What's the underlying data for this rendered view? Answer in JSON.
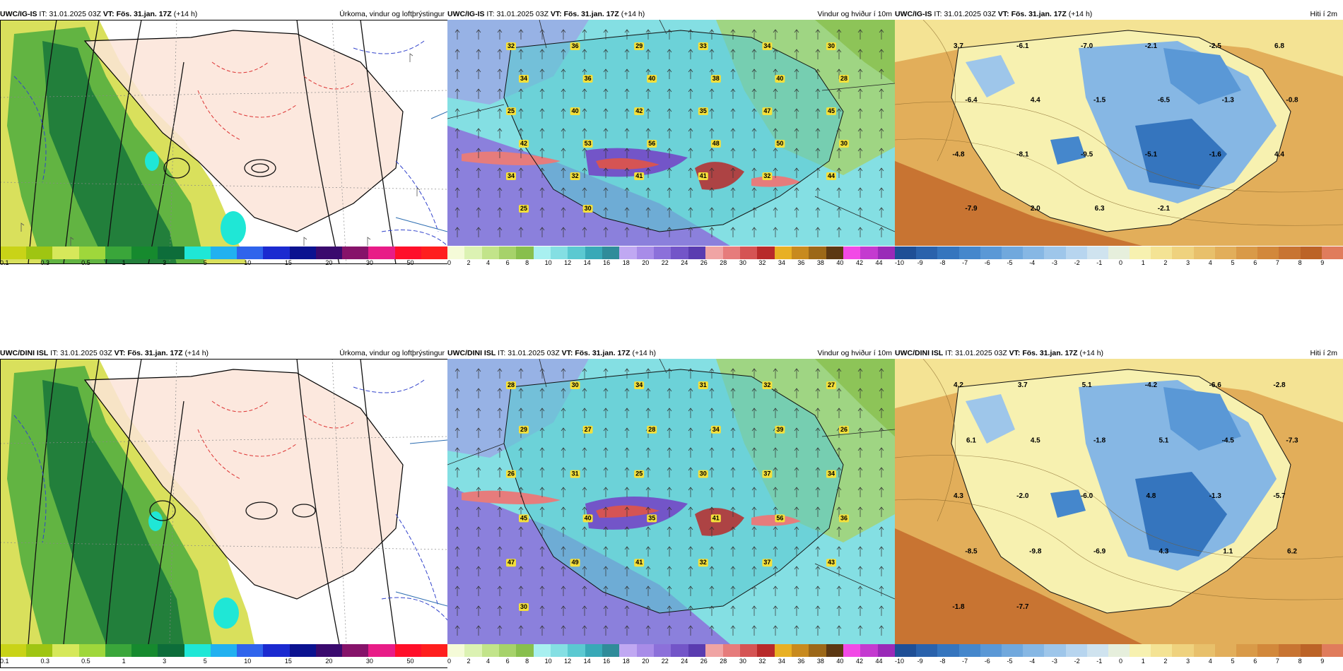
{
  "top_row": {
    "model": "UWC/IG-IS",
    "it_label": "IT:",
    "it_value": "31.01.2025 03Z",
    "vt_label": "VT:",
    "vt_value": "Fös. 31.jan. 17Z",
    "lead": "(+14 h)",
    "panels": [
      {
        "title": "Úrkoma, vindur og loftþrýstingur"
      },
      {
        "title": "Vindur og hviður í 10m"
      },
      {
        "title": "Hiti í 2m"
      }
    ],
    "temp_labels": [
      "3.7",
      "-6.1",
      "-7.0",
      "-2.1",
      "-2.5",
      "6.8",
      "-6.4",
      "4.4",
      "-1.5",
      "-6.5",
      "-1.3",
      "-0.8",
      "-4.8",
      "-8.1",
      "-9.5",
      "-5.1",
      "-1.6",
      "4.4",
      "-7.9",
      "2.0",
      "6.3",
      "-2.1"
    ],
    "wind_labels": [
      "32",
      "36",
      "29",
      "33",
      "34",
      "30",
      "34",
      "36",
      "40",
      "38",
      "40",
      "28",
      "25",
      "40",
      "42",
      "35",
      "47",
      "45",
      "42",
      "53",
      "56",
      "48",
      "50",
      "30",
      "34",
      "32",
      "41",
      "41",
      "32",
      "44",
      "25",
      "30"
    ]
  },
  "bottom_row": {
    "model": "UWC/DINI ISL",
    "it_label": "IT:",
    "it_value": "31.01.2025 03Z",
    "vt_label": "VT:",
    "vt_value": "Fös. 31.jan. 17Z",
    "lead": "(+14 h)",
    "panels": [
      {
        "title": "Úrkoma, vindur og loftþrýstingur"
      },
      {
        "title": "Vindur og hviður í 10m"
      },
      {
        "title": "Hiti í 2m"
      }
    ],
    "temp_labels": [
      "4.2",
      "3.7",
      "5.1",
      "-4.2",
      "-6.6",
      "-2.8",
      "6.1",
      "4.5",
      "-1.8",
      "5.1",
      "-4.5",
      "-7.3",
      "4.3",
      "-2.0",
      "-6.0",
      "4.8",
      "-1.3",
      "-5.7",
      "-8.5",
      "-9.8",
      "-6.9",
      "4.3",
      "1.1",
      "6.2",
      "-1.8",
      "-7.7"
    ],
    "wind_labels": [
      "28",
      "30",
      "34",
      "31",
      "32",
      "27",
      "29",
      "27",
      "28",
      "34",
      "39",
      "26",
      "26",
      "31",
      "25",
      "30",
      "37",
      "34",
      "45",
      "40",
      "35",
      "41",
      "56",
      "36",
      "47",
      "49",
      "41",
      "32",
      "37",
      "43",
      "30"
    ]
  },
  "legends": {
    "precip": {
      "colors": [
        "#c9d317",
        "#9fc512",
        "#d6e85a",
        "#9fd73b",
        "#3aa63a",
        "#168a2e",
        "#0d6d3a",
        "#1fe7d6",
        "#21b1f0",
        "#2f64ec",
        "#1b2ad0",
        "#0b1290",
        "#3a0a6e",
        "#86136a",
        "#e81c87",
        "#ff0f2a",
        "#ff1e1e"
      ],
      "ticks": [
        "0.1",
        "0.3",
        "0.5",
        "1",
        "3",
        "5",
        "10",
        "15",
        "20",
        "30",
        "50"
      ]
    },
    "wind": {
      "colors": [
        "#f5fbd8",
        "#dcf2b3",
        "#c2e48a",
        "#a6d26a",
        "#88bf4d",
        "#a8f0f0",
        "#84dfe3",
        "#5bc9d1",
        "#38a9b7",
        "#2f8c9a",
        "#c0a8f2",
        "#a88ce8",
        "#8c70da",
        "#7355c8",
        "#5a3cb0",
        "#f0a4a4",
        "#e67c7c",
        "#d55454",
        "#b82a2a",
        "#e8b023",
        "#c88a1e",
        "#9c6818",
        "#5c3812",
        "#f24ae6",
        "#c43ad0",
        "#9a2ab8"
      ],
      "ticks": [
        "0",
        "2",
        "4",
        "6",
        "8",
        "10",
        "12",
        "14",
        "16",
        "18",
        "20",
        "22",
        "24",
        "26",
        "28",
        "30",
        "32",
        "34",
        "36",
        "38",
        "40",
        "42",
        "44"
      ]
    },
    "temp": {
      "colors": [
        "#1f4f96",
        "#2a62ac",
        "#3575be",
        "#4587cc",
        "#5a98d6",
        "#70a8dd",
        "#86b7e4",
        "#9ec6ea",
        "#b7d5ef",
        "#cfe3ef",
        "#e6efdc",
        "#f7f1b0",
        "#f4e394",
        "#efd27e",
        "#e8c06b",
        "#e2ae5a",
        "#d99a48",
        "#d2883b",
        "#c87432",
        "#bc6327",
        "#e07c5c"
      ],
      "ticks": [
        "-10",
        "-9",
        "-8",
        "-7",
        "-6",
        "-5",
        "-4",
        "-3",
        "-2",
        "-1",
        "0",
        "1",
        "2",
        "3",
        "4",
        "5",
        "6",
        "7",
        "8",
        "9"
      ]
    }
  }
}
